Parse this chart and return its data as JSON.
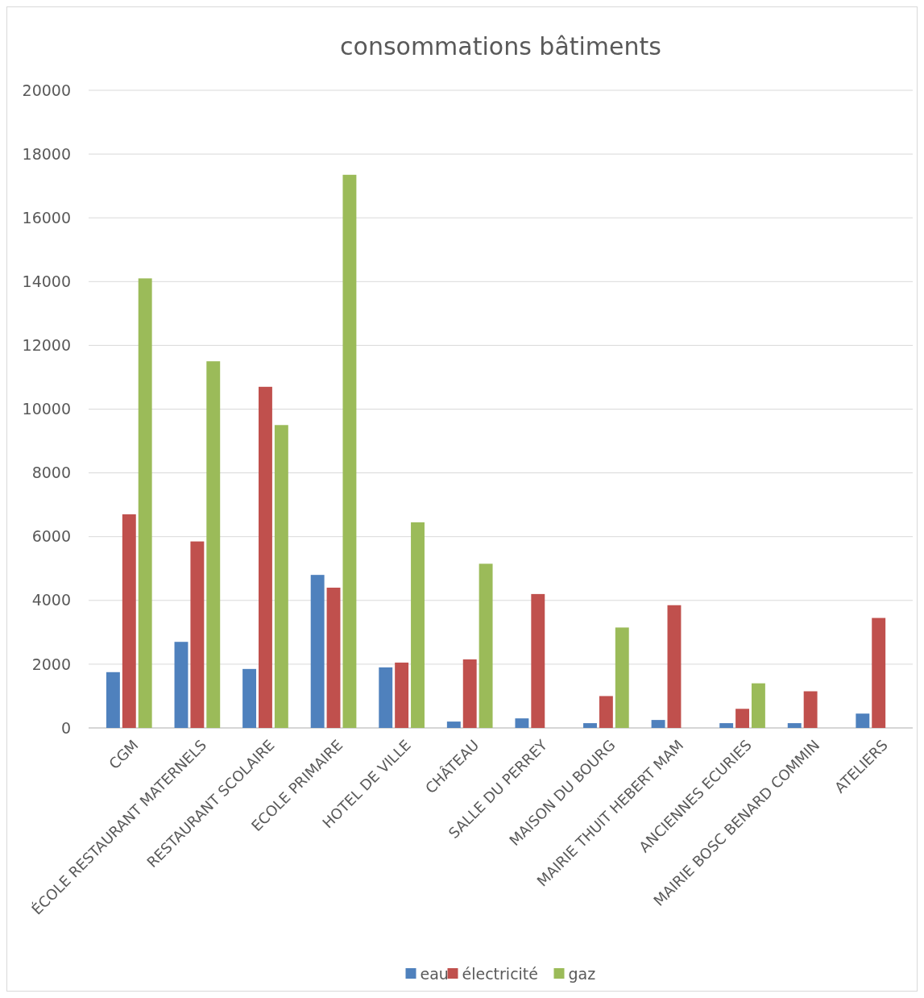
{
  "chart_data": {
    "type": "bar",
    "title": "consommations bâtiments",
    "categories": [
      "CGM",
      "ÉCOLE RESTAURANT MATERNELS",
      "RESTAURANT SCOLAIRE",
      "ECOLE PRIMAIRE",
      "HOTEL DE VILLE",
      "CHÂTEAU",
      "SALLE DU PERREY",
      "MAISON DU BOURG",
      "MAIRIE THUIT HEBERT MAM",
      "ANCIENNES ECURIES",
      "MAIRIE BOSC BENARD COMMIN",
      "ATELIERS"
    ],
    "series": [
      {
        "name": "eau",
        "color": "#4f81bd",
        "values": [
          1750,
          2700,
          1850,
          4800,
          1900,
          200,
          300,
          150,
          250,
          150,
          150,
          450
        ]
      },
      {
        "name": "électricité",
        "color": "#c0504d",
        "values": [
          6700,
          5850,
          10700,
          4400,
          2050,
          2150,
          4200,
          1000,
          3850,
          600,
          1150,
          3450
        ]
      },
      {
        "name": "gaz",
        "color": "#9bbb59",
        "values": [
          14100,
          11500,
          9500,
          17350,
          6450,
          5150,
          null,
          3150,
          null,
          1400,
          null,
          null
        ]
      }
    ],
    "ylim": [
      0,
      20000
    ],
    "yticks": [
      0,
      2000,
      4000,
      6000,
      8000,
      10000,
      12000,
      14000,
      16000,
      18000,
      20000
    ],
    "grid": "y",
    "legend": "bottom"
  }
}
